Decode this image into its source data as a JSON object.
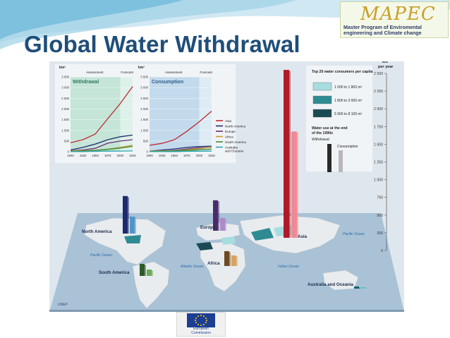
{
  "slide": {
    "title": "Global Water Withdrawal"
  },
  "logo": {
    "wordmark": "MAPEC",
    "subtitle": "Master Program of Enviromental engineering and Climate change"
  },
  "footer_logo": {
    "text_line1": "European",
    "text_line2": "Commission"
  },
  "figure": {
    "unep_label": "UNEP",
    "ocean_labels": [
      "Pacific Ocean",
      "Atlantic Ocean",
      "Indian Ocean",
      "Pacific Ocean"
    ],
    "region_labels": [
      "North America",
      "South America",
      "Europe",
      "Africa",
      "Asia",
      "Australia and Oceania"
    ],
    "legend_title": "Top 20 water consumers per capita",
    "legend_items": [
      {
        "label": "1 000 to 1 800 m³",
        "color": "#a8dde0"
      },
      {
        "label": "1 800 to 3 000 m³",
        "color": "#2e8b93"
      },
      {
        "label": "5 900 to 8 100 m³",
        "color": "#1b4a52"
      }
    ],
    "bar_legend": {
      "title_line1": "Water use at the end",
      "title_line2": "of the 1990s",
      "withdrawal": "Withdrawal",
      "consumption": "Consumption"
    }
  },
  "chart_data": [
    {
      "type": "bar",
      "title": "",
      "ylabel": "km³ per year",
      "ylim": [
        0,
        2500
      ],
      "ticks": [
        "0",
        "250",
        "500",
        "750",
        "1 000",
        "1 250",
        "1 500",
        "1 750",
        "2 000",
        "2 250",
        "2 500"
      ],
      "categories": [
        "North America",
        "South America",
        "Europe",
        "Africa",
        "Asia",
        "Australia and Oceania"
      ],
      "series": [
        {
          "name": "Withdrawal",
          "values": [
            530,
            170,
            430,
            210,
            2370,
            30
          ]
        },
        {
          "name": "Consumption",
          "values": [
            240,
            90,
            180,
            150,
            1500,
            20
          ]
        }
      ],
      "colors": {
        "North America": [
          "#1d2a6e",
          "#4f95c9"
        ],
        "South America": [
          "#2d5a27",
          "#6aa85a"
        ],
        "Europe": [
          "#4b2a6b",
          "#a98bc6"
        ],
        "Africa": [
          "#6e4a1e",
          "#d9a35b"
        ],
        "Asia": [
          "#b01a28",
          "#ee8a95"
        ],
        "Australia and Oceania": [
          "#11656b",
          "#60c3c9"
        ]
      }
    },
    {
      "type": "line",
      "title": "Withdrawal",
      "ylabel": "km³",
      "header_left": "Assessment",
      "header_right": "Forecast",
      "x": [
        1900,
        1925,
        1950,
        1975,
        2000,
        2025
      ],
      "xticks": [
        "1900",
        "1925",
        "1950",
        "1975",
        "2000",
        "2025"
      ],
      "ylim": [
        0,
        3500
      ],
      "yticks": [
        "0",
        "500",
        "1 000",
        "1 500",
        "2 000",
        "2 500",
        "3 000",
        "3 500"
      ],
      "series": [
        {
          "name": "Asia",
          "color": "#c0282e",
          "values": [
            420,
            560,
            830,
            1550,
            2250,
            3050
          ]
        },
        {
          "name": "North America",
          "color": "#1d2a6e",
          "values": [
            80,
            200,
            360,
            560,
            700,
            780
          ]
        },
        {
          "name": "Europe",
          "color": "#6a2c77",
          "values": [
            40,
            80,
            160,
            400,
            500,
            560
          ]
        },
        {
          "name": "Africa",
          "color": "#c79a2a",
          "values": [
            40,
            50,
            60,
            120,
            200,
            300
          ]
        },
        {
          "name": "South America",
          "color": "#3d8a35",
          "values": [
            15,
            25,
            60,
            110,
            170,
            250
          ]
        },
        {
          "name": "Australia and Oceania",
          "color": "#2aa6b3",
          "values": [
            5,
            8,
            15,
            25,
            30,
            35
          ]
        }
      ]
    },
    {
      "type": "line",
      "title": "Consumption",
      "ylabel": "km³",
      "header_left": "Assessment",
      "header_right": "Forecast",
      "x": [
        1900,
        1925,
        1950,
        1975,
        2000,
        2025
      ],
      "xticks": [
        "1900",
        "1925",
        "1950",
        "1975",
        "2000",
        "2025"
      ],
      "ylim": [
        0,
        3500
      ],
      "yticks": [
        "0",
        "500",
        "1 000",
        "1 500",
        "2 000",
        "2 500",
        "3 000",
        "3 500"
      ],
      "series": [
        {
          "name": "Asia",
          "color": "#c0282e",
          "values": [
            300,
            390,
            560,
            950,
            1400,
            1900
          ]
        },
        {
          "name": "North America",
          "color": "#1d2a6e",
          "values": [
            30,
            80,
            130,
            200,
            240,
            260
          ]
        },
        {
          "name": "Europe",
          "color": "#6a2c77",
          "values": [
            15,
            30,
            60,
            130,
            180,
            200
          ]
        },
        {
          "name": "Africa",
          "color": "#c79a2a",
          "values": [
            30,
            40,
            50,
            90,
            150,
            200
          ]
        },
        {
          "name": "South America",
          "color": "#3d8a35",
          "values": [
            10,
            15,
            40,
            60,
            90,
            120
          ]
        },
        {
          "name": "Australia and Oceania",
          "color": "#2aa6b3",
          "values": [
            3,
            5,
            8,
            15,
            20,
            25
          ]
        }
      ]
    }
  ]
}
